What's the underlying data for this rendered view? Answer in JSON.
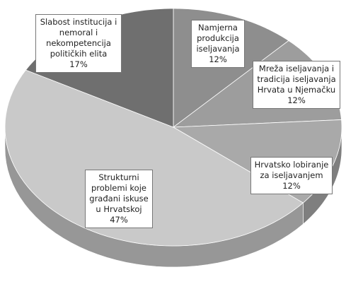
{
  "chart_data": {
    "type": "pie",
    "categories": [
      "Namjerna produkcija iseljavanja",
      "Mreža iseljavanja i tradicija iseljavanja Hrvata u Njemačku",
      "Hrvatsko lobiranje za iseljavanjem",
      "Strukturni problemi koje građani iskuse u Hrvatskoj",
      "Slabost institucija i nemoral i nekompetencija političkih elita"
    ],
    "values": [
      12,
      12,
      12,
      47,
      17
    ],
    "value_labels": [
      "12%",
      "12%",
      "12%",
      "47%",
      "17%"
    ],
    "colors": [
      "#8e8e8e",
      "#9d9d9d",
      "#a9a9a9",
      "#c9c9c9",
      "#6f6f6f"
    ]
  }
}
